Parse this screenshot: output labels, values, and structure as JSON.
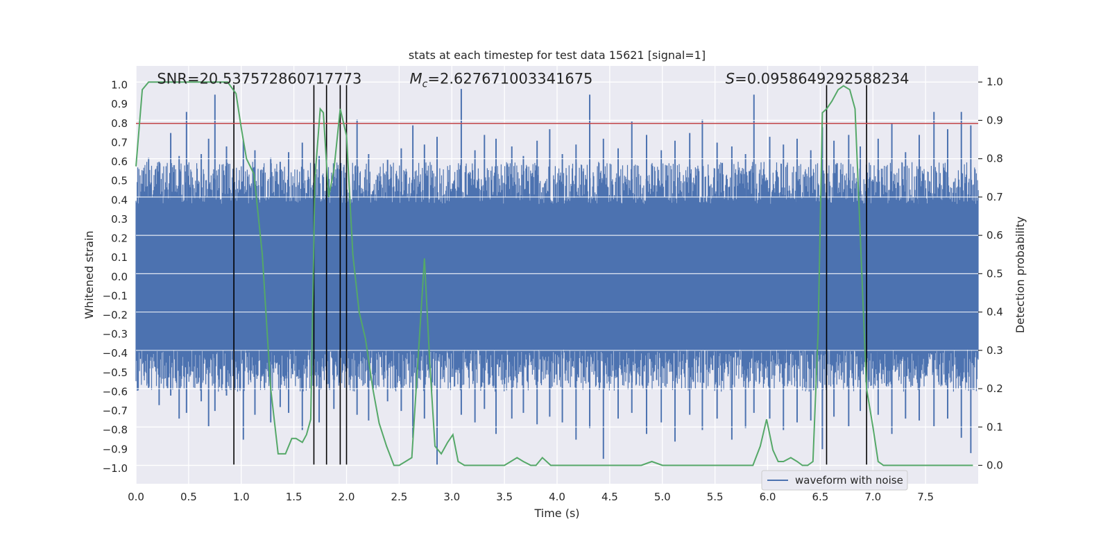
{
  "chart_data": {
    "type": "line",
    "title": "stats at each timestep for test data 15621 [signal=1]",
    "xlabel": "Time (s)",
    "ylabel_left": "Whitened strain",
    "ylabel_right": "Detection probability",
    "xlim": [
      0.0,
      8.0
    ],
    "ylim_left": [
      -1.08,
      1.1
    ],
    "ylim_right": [
      -0.048,
      1.042
    ],
    "x_ticks": [
      0.0,
      0.5,
      1.0,
      1.5,
      2.0,
      2.5,
      3.0,
      3.5,
      4.0,
      4.5,
      5.0,
      5.5,
      6.0,
      6.5,
      7.0,
      7.5
    ],
    "x_tick_labels": [
      "0.0",
      "0.5",
      "1.0",
      "1.5",
      "2.0",
      "2.5",
      "3.0",
      "3.5",
      "4.0",
      "4.5",
      "5.0",
      "5.5",
      "6.0",
      "6.5",
      "7.0",
      "7.5"
    ],
    "y_left_ticks": [
      1.0,
      0.9,
      0.8,
      0.7,
      0.6,
      0.5,
      0.4,
      0.3,
      0.2,
      0.1,
      0.0,
      -0.1,
      -0.2,
      -0.3,
      -0.4,
      -0.5,
      -0.6,
      -0.7,
      -0.8,
      -0.9,
      -1.0
    ],
    "y_left_tick_labels": [
      "1.0",
      "0.9",
      "0.8",
      "0.7",
      "0.6",
      "0.5",
      "0.4",
      "0.3",
      "0.2",
      "0.1",
      "0.0",
      "−0.1",
      "−0.2",
      "−0.3",
      "−0.4",
      "−0.5",
      "−0.6",
      "−0.7",
      "−0.8",
      "−0.9",
      "−1.0"
    ],
    "y_right_ticks": [
      1.0,
      0.9,
      0.8,
      0.7,
      0.6,
      0.5,
      0.4,
      0.3,
      0.2,
      0.1,
      0.0
    ],
    "y_right_tick_labels": [
      "1.0",
      "0.9",
      "0.8",
      "0.7",
      "0.6",
      "0.5",
      "0.4",
      "0.3",
      "0.2",
      "0.1",
      "0.0"
    ],
    "threshold": {
      "value": 0.8,
      "axis": "left",
      "color": "#c44e52"
    },
    "vlines": [
      0.93,
      1.69,
      1.81,
      1.94,
      2.0,
      6.56,
      6.94
    ],
    "vline_range": [
      -0.98,
      1.0
    ],
    "series": [
      {
        "name": "waveform with noise",
        "axis": "left",
        "color": "#4c72b0",
        "core_band": [
          -0.35,
          0.35
        ],
        "spikes_x": [
          0.12,
          0.22,
          0.33,
          0.41,
          0.48,
          0.62,
          0.69,
          0.75,
          0.86,
          1.02,
          1.13,
          1.28,
          1.37,
          1.45,
          1.58,
          1.74,
          1.88,
          2.1,
          2.21,
          2.39,
          2.52,
          2.63,
          2.74,
          2.86,
          3.09,
          3.22,
          3.31,
          3.42,
          3.57,
          3.68,
          3.81,
          3.93,
          4.05,
          4.18,
          4.31,
          4.44,
          4.58,
          4.71,
          4.85,
          4.99,
          5.12,
          5.26,
          5.38,
          5.52,
          5.66,
          5.79,
          5.87,
          6.02,
          6.15,
          6.28,
          6.41,
          6.52,
          6.63,
          6.77,
          6.88,
          7.05,
          7.18,
          7.31,
          7.44,
          7.58,
          7.71,
          7.84,
          7.93
        ],
        "spikes_top": [
          0.62,
          0.6,
          0.75,
          0.63,
          0.86,
          0.64,
          0.72,
          0.95,
          0.68,
          0.71,
          0.66,
          0.62,
          0.6,
          0.65,
          0.7,
          0.63,
          0.58,
          0.82,
          0.64,
          0.61,
          0.67,
          0.79,
          0.69,
          0.73,
          0.98,
          0.66,
          0.74,
          0.72,
          0.68,
          0.63,
          0.71,
          0.77,
          0.64,
          0.69,
          0.95,
          0.72,
          0.67,
          0.81,
          0.74,
          0.66,
          0.71,
          0.75,
          0.82,
          0.7,
          0.68,
          0.64,
          0.95,
          0.73,
          0.69,
          0.72,
          0.66,
          0.78,
          0.71,
          0.74,
          0.68,
          0.72,
          0.8,
          0.65,
          0.74,
          0.86,
          0.77,
          0.86,
          0.79
        ],
        "spikes_bottom": [
          -0.58,
          -0.67,
          -0.62,
          -0.74,
          -0.71,
          -0.65,
          -0.78,
          -0.7,
          -0.62,
          -0.85,
          -0.72,
          -0.76,
          -0.68,
          -0.71,
          -0.8,
          -0.76,
          -0.69,
          -0.72,
          -0.75,
          -0.65,
          -0.7,
          -0.84,
          -0.74,
          -0.98,
          -0.72,
          -0.76,
          -0.69,
          -0.82,
          -0.74,
          -0.71,
          -0.77,
          -0.73,
          -0.76,
          -0.85,
          -0.79,
          -0.95,
          -0.74,
          -0.71,
          -0.82,
          -0.76,
          -0.86,
          -0.72,
          -0.8,
          -0.74,
          -0.85,
          -0.79,
          -0.71,
          -0.74,
          -0.8,
          -0.76,
          -0.75,
          -0.9,
          -0.73,
          -0.78,
          -0.7,
          -0.72,
          -0.82,
          -0.74,
          -0.75,
          -0.78,
          -0.74,
          -0.84,
          -0.92
        ]
      },
      {
        "name": "detection probability",
        "axis": "right",
        "color": "#55a868",
        "x": [
          0.0,
          0.06,
          0.12,
          0.25,
          0.5,
          0.75,
          0.87,
          0.95,
          1.0,
          1.05,
          1.12,
          1.2,
          1.28,
          1.35,
          1.42,
          1.48,
          1.52,
          1.58,
          1.62,
          1.66,
          1.7,
          1.75,
          1.78,
          1.83,
          1.88,
          1.94,
          2.0,
          2.06,
          2.12,
          2.18,
          2.25,
          2.31,
          2.38,
          2.45,
          2.5,
          2.56,
          2.62,
          2.68,
          2.74,
          2.79,
          2.84,
          2.9,
          2.96,
          3.01,
          3.06,
          3.12,
          3.2,
          3.3,
          3.4,
          3.5,
          3.56,
          3.62,
          3.68,
          3.75,
          3.8,
          3.86,
          3.94,
          4.05,
          4.2,
          4.4,
          4.6,
          4.8,
          4.9,
          5.0,
          5.3,
          5.6,
          5.8,
          5.86,
          5.93,
          5.99,
          6.05,
          6.1,
          6.15,
          6.22,
          6.28,
          6.33,
          6.38,
          6.43,
          6.48,
          6.52,
          6.56,
          6.61,
          6.67,
          6.72,
          6.78,
          6.83,
          6.88,
          6.94,
          7.0,
          7.05,
          7.1,
          7.15,
          7.22,
          7.3,
          7.4,
          7.6,
          7.8,
          7.95
        ],
        "y": [
          0.78,
          0.98,
          1.0,
          1.0,
          1.0,
          1.0,
          1.0,
          0.97,
          0.88,
          0.8,
          0.76,
          0.55,
          0.2,
          0.03,
          0.03,
          0.07,
          0.07,
          0.06,
          0.08,
          0.12,
          0.75,
          0.93,
          0.92,
          0.7,
          0.77,
          0.93,
          0.86,
          0.55,
          0.4,
          0.33,
          0.2,
          0.11,
          0.05,
          0.0,
          0.0,
          0.01,
          0.02,
          0.28,
          0.54,
          0.27,
          0.05,
          0.03,
          0.06,
          0.08,
          0.01,
          0.0,
          0.0,
          0.0,
          0.0,
          0.0,
          0.01,
          0.02,
          0.01,
          0.0,
          0.0,
          0.02,
          0.0,
          0.0,
          0.0,
          0.0,
          0.0,
          0.0,
          0.01,
          0.0,
          0.0,
          0.0,
          0.0,
          0.0,
          0.05,
          0.12,
          0.04,
          0.01,
          0.01,
          0.02,
          0.01,
          0.0,
          0.0,
          0.01,
          0.35,
          0.92,
          0.93,
          0.95,
          0.98,
          0.99,
          0.98,
          0.93,
          0.6,
          0.2,
          0.1,
          0.01,
          0.0,
          0.0,
          0.0,
          0.0,
          0.0,
          0.0,
          0.0,
          0.0
        ]
      }
    ],
    "annotations": [
      {
        "id": "snr",
        "prefix": "",
        "symbol": "",
        "subscript": "",
        "label": "SNR=20.537572860717773",
        "value": "SNR=20.537572860717773",
        "x": 0.2,
        "y": 1.0
      },
      {
        "id": "mc",
        "prefix": "",
        "symbol": "M",
        "subscript": "c",
        "label": "=2.627671003341675",
        "value": "=2.627671003341675",
        "x": 2.6,
        "y": 1.0
      },
      {
        "id": "s",
        "prefix": "",
        "symbol": "S",
        "subscript": "",
        "label": "=0.0958649292588234",
        "value": "=0.0958649292588234",
        "x": 5.6,
        "y": 1.0
      }
    ],
    "legend": {
      "position": "lower-right",
      "entries": [
        "waveform with noise"
      ]
    },
    "grid": true,
    "colors": {
      "plot_bg": "#eaeaf2",
      "grid": "#ffffff",
      "vline": "#000000"
    }
  }
}
